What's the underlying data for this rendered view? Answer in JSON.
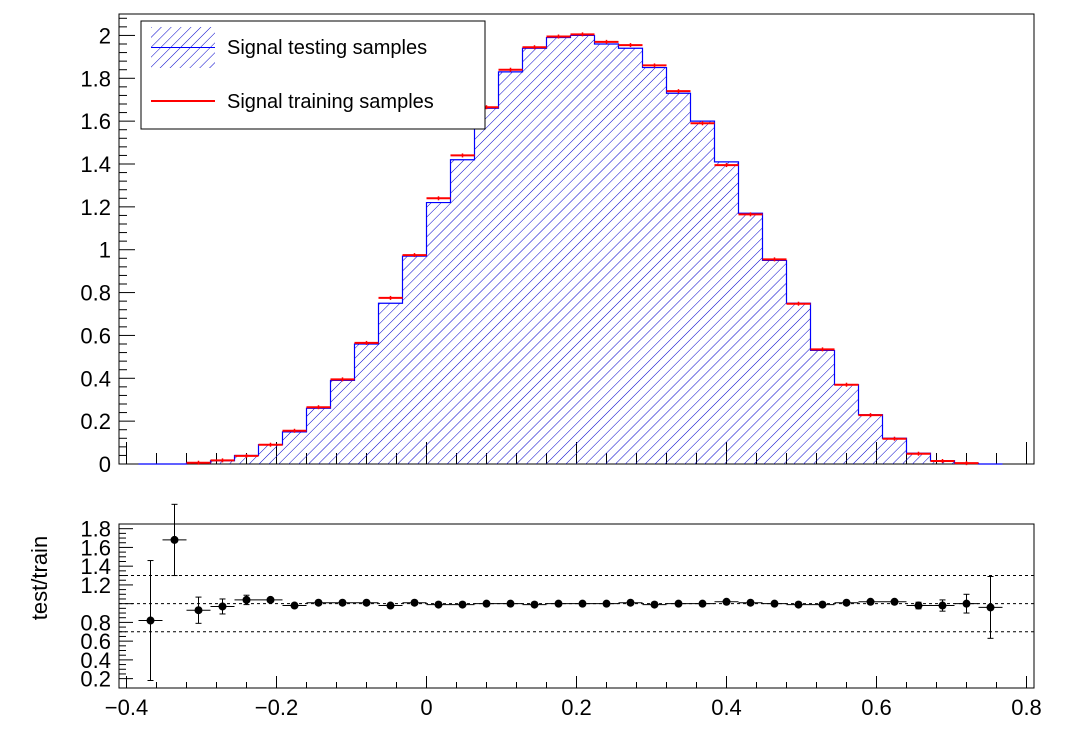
{
  "chart_data": [
    {
      "type": "histogram",
      "panel": "main",
      "ylim": [
        0,
        2.1
      ],
      "xlim": [
        -0.41,
        0.81
      ],
      "ylabel": "",
      "xlabel": "",
      "y_ticks": [
        0,
        0.2,
        0.4,
        0.6,
        0.8,
        1,
        1.2,
        1.4,
        1.6,
        1.8,
        2
      ],
      "y_tick_labels": [
        "0",
        "0.2",
        "0.4",
        "0.6",
        "0.8",
        "1",
        "1.2",
        "1.4",
        "1.6",
        "1.8",
        "2"
      ],
      "bin_edges": [
        -0.384,
        -0.352,
        -0.32,
        -0.288,
        -0.256,
        -0.224,
        -0.192,
        -0.16,
        -0.128,
        -0.096,
        -0.064,
        -0.032,
        0.0,
        0.032,
        0.064,
        0.096,
        0.128,
        0.16,
        0.192,
        0.224,
        0.256,
        0.288,
        0.32,
        0.352,
        0.384,
        0.416,
        0.448,
        0.48,
        0.512,
        0.544,
        0.576,
        0.608,
        0.64,
        0.672,
        0.704,
        0.736,
        0.768
      ],
      "legend": {
        "placement": "top-left",
        "entries": [
          {
            "label": "Signal testing samples",
            "color": "#0000ff",
            "style": "hatched"
          },
          {
            "label": "Signal training samples",
            "color": "#ff0000",
            "style": "line"
          }
        ]
      },
      "series": [
        {
          "name": "Signal testing samples",
          "color": "#0000ff",
          "values": [
            0.0,
            0.0,
            0.005,
            0.015,
            0.04,
            0.09,
            0.15,
            0.26,
            0.39,
            0.56,
            0.75,
            0.97,
            1.22,
            1.42,
            1.66,
            1.83,
            1.94,
            1.99,
            2.0,
            1.96,
            1.94,
            1.85,
            1.73,
            1.6,
            1.41,
            1.17,
            0.95,
            0.75,
            0.53,
            0.37,
            0.23,
            0.12,
            0.05,
            0.015,
            0.003,
            0.0
          ]
        },
        {
          "name": "Signal training samples",
          "color": "#ff0000",
          "values": [
            0.0,
            0.0,
            0.006,
            0.017,
            0.038,
            0.09,
            0.155,
            0.265,
            0.395,
            0.565,
            0.775,
            0.975,
            1.24,
            1.44,
            1.665,
            1.84,
            1.945,
            1.995,
            2.005,
            1.97,
            1.955,
            1.86,
            1.74,
            1.59,
            1.395,
            1.165,
            0.955,
            0.748,
            0.535,
            0.37,
            0.228,
            0.118,
            0.048,
            0.014,
            0.004,
            0.0
          ]
        }
      ]
    },
    {
      "type": "scatter",
      "panel": "ratio",
      "ylabel": "test/train",
      "xlabel": "",
      "ylim": [
        0.1,
        1.85
      ],
      "xlim": [
        -0.41,
        0.81
      ],
      "y_ticks": [
        0.2,
        0.4,
        0.6,
        0.8,
        1,
        1.2,
        1.4,
        1.6,
        1.8
      ],
      "y_tick_labels": [
        "0.2",
        "0.4",
        "0.6",
        "0.8",
        "",
        "1.2",
        "1.4",
        "1.6",
        "1.8"
      ],
      "x_ticks": [
        -0.4,
        -0.2,
        0,
        0.2,
        0.4,
        0.6,
        0.8
      ],
      "x_tick_labels": [
        "−0.4",
        "−0.2",
        "0",
        "0.2",
        "0.4",
        "0.6",
        "0.8"
      ],
      "reference_lines": [
        0.7,
        1.0,
        1.3
      ],
      "points": [
        {
          "x": -0.368,
          "y": 0.82,
          "err": 0.64
        },
        {
          "x": -0.336,
          "y": 1.68,
          "err": 0.38
        },
        {
          "x": -0.304,
          "y": 0.93,
          "err": 0.14
        },
        {
          "x": -0.272,
          "y": 0.97,
          "err": 0.08
        },
        {
          "x": -0.24,
          "y": 1.04,
          "err": 0.05
        },
        {
          "x": -0.208,
          "y": 1.04,
          "err": 0.03
        },
        {
          "x": -0.176,
          "y": 0.98,
          "err": 0.02
        },
        {
          "x": -0.144,
          "y": 1.01,
          "err": 0.015
        },
        {
          "x": -0.112,
          "y": 1.01,
          "err": 0.012
        },
        {
          "x": -0.08,
          "y": 1.01,
          "err": 0.01
        },
        {
          "x": -0.048,
          "y": 0.98,
          "err": 0.008
        },
        {
          "x": -0.016,
          "y": 1.01,
          "err": 0.007
        },
        {
          "x": 0.016,
          "y": 0.99,
          "err": 0.006
        },
        {
          "x": 0.048,
          "y": 0.99,
          "err": 0.006
        },
        {
          "x": 0.08,
          "y": 1.0,
          "err": 0.006
        },
        {
          "x": 0.112,
          "y": 1.0,
          "err": 0.005
        },
        {
          "x": 0.144,
          "y": 0.99,
          "err": 0.005
        },
        {
          "x": 0.176,
          "y": 1.0,
          "err": 0.005
        },
        {
          "x": 0.208,
          "y": 1.0,
          "err": 0.005
        },
        {
          "x": 0.24,
          "y": 1.0,
          "err": 0.005
        },
        {
          "x": 0.272,
          "y": 1.01,
          "err": 0.005
        },
        {
          "x": 0.304,
          "y": 0.99,
          "err": 0.005
        },
        {
          "x": 0.336,
          "y": 1.0,
          "err": 0.005
        },
        {
          "x": 0.368,
          "y": 1.0,
          "err": 0.006
        },
        {
          "x": 0.4,
          "y": 1.02,
          "err": 0.006
        },
        {
          "x": 0.432,
          "y": 1.01,
          "err": 0.007
        },
        {
          "x": 0.464,
          "y": 1.0,
          "err": 0.008
        },
        {
          "x": 0.496,
          "y": 0.99,
          "err": 0.009
        },
        {
          "x": 0.528,
          "y": 0.99,
          "err": 0.011
        },
        {
          "x": 0.56,
          "y": 1.01,
          "err": 0.013
        },
        {
          "x": 0.592,
          "y": 1.02,
          "err": 0.017
        },
        {
          "x": 0.624,
          "y": 1.02,
          "err": 0.022
        },
        {
          "x": 0.656,
          "y": 0.98,
          "err": 0.035
        },
        {
          "x": 0.688,
          "y": 0.98,
          "err": 0.06
        },
        {
          "x": 0.72,
          "y": 1.0,
          "err": 0.1
        },
        {
          "x": 0.752,
          "y": 0.96,
          "err": 0.33
        }
      ]
    }
  ]
}
